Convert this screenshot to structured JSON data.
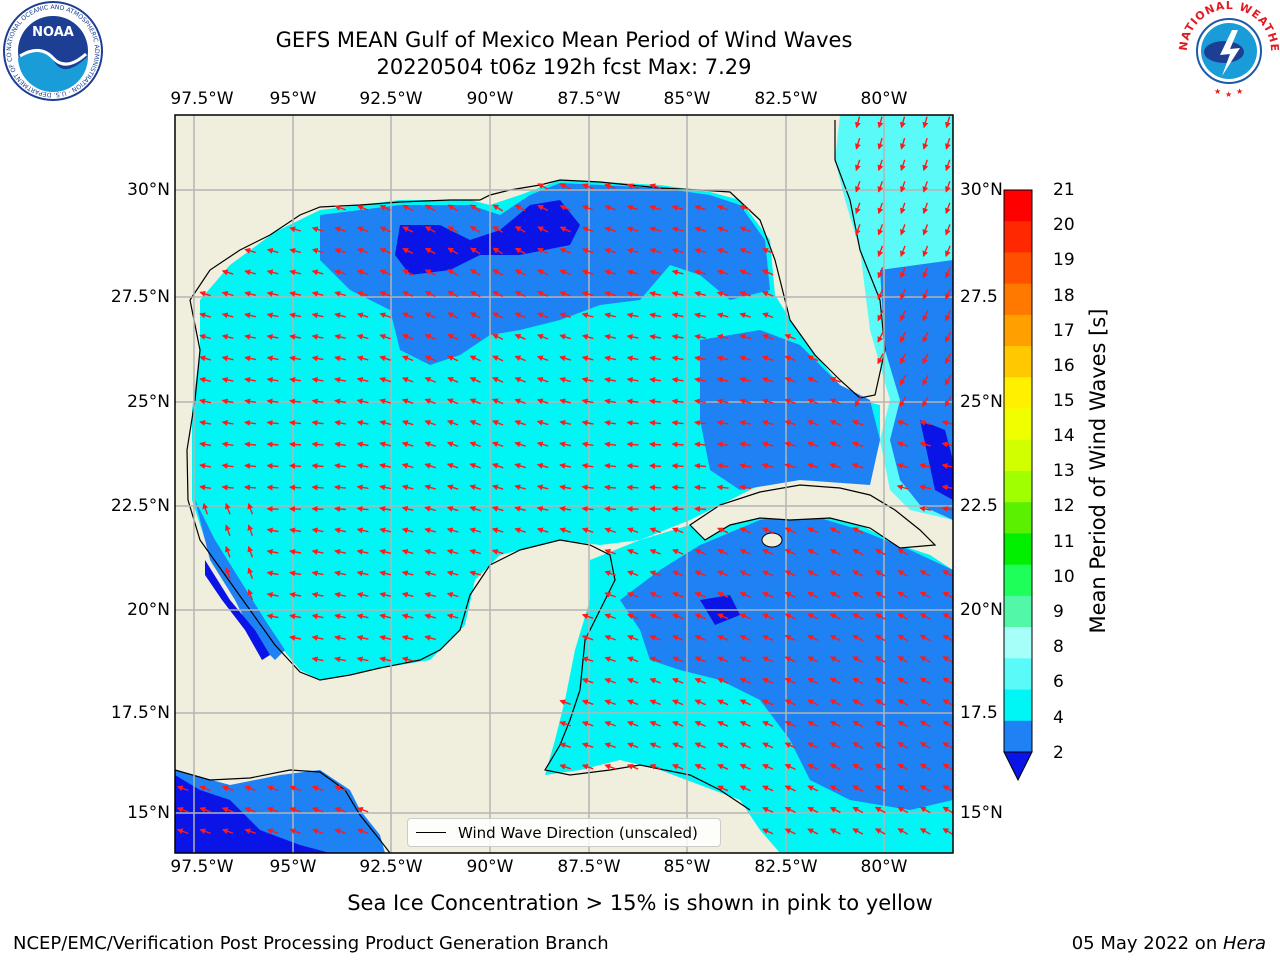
{
  "title": {
    "line1": "GEFS MEAN Gulf of Mexico Mean Period of Wind Waves",
    "line2": "20220504 t06z 192h fcst   Max: 7.29"
  },
  "map": {
    "lon_labels": [
      "97.5°W",
      "95°W",
      "92.5°W",
      "90°W",
      "87.5°W",
      "85°W",
      "82.5°W",
      "80°W"
    ],
    "lat_labels": [
      "30°N",
      "27.5°N",
      "25°N",
      "22.5°N",
      "20°N",
      "17.5°N",
      "15°N"
    ],
    "lat_labels_right": [
      "30°N",
      "27.5",
      "25°N",
      "22.5",
      "20°N",
      "17.5",
      "15°N"
    ],
    "colors": {
      "land": "#f0eedc",
      "darkblue": "#0a14e6",
      "blue": "#1e82f5",
      "cyan": "#00f5f5",
      "lightcyan": "#5afaf8",
      "grid": "#b4b4b4",
      "arrow": "#ff1a1a"
    }
  },
  "colorbar": {
    "label": "Mean Period of Wind Waves [s]",
    "ticks": [
      "21",
      "20",
      "19",
      "18",
      "17",
      "16",
      "15",
      "14",
      "13",
      "12",
      "11",
      "10",
      "9",
      "8",
      "6",
      "4",
      "2"
    ],
    "colors": [
      "#ff0000",
      "#ff2800",
      "#ff5000",
      "#ff7800",
      "#ffa000",
      "#ffc800",
      "#fff000",
      "#f0ff00",
      "#d2ff00",
      "#a0ff00",
      "#5af000",
      "#00f000",
      "#1eff5a",
      "#52f8a8",
      "#a6fff8",
      "#5afaf8",
      "#00f5f5",
      "#1e82f5"
    ],
    "extend_color": "#0a14e6"
  },
  "legend": {
    "label": "Wind Wave Direction (unscaled)"
  },
  "footer": {
    "note": "Sea Ice Concentration > 15% is shown in pink to yellow",
    "left": "NCEP/EMC/Verification Post Processing Product Generation Branch",
    "date": "05 May 2022 on ",
    "machine": "Hera"
  },
  "logos": {
    "noaa": "NOAA",
    "noaa_ring": "NATIONAL OCEANIC AND ATMOSPHERIC ADMINISTRATION · U.S. DEPARTMENT OF COMMERCE",
    "nws_ring": "NATIONAL WEATHER SERVICE"
  }
}
